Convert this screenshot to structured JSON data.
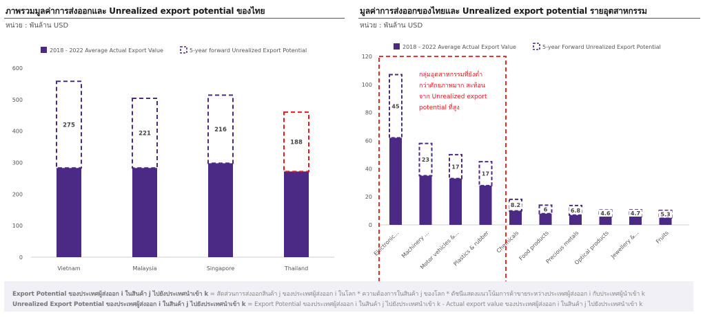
{
  "left_panel": {
    "title": "ภาพรวมมูลค่าการส่งออกและ Unrealized export potential ของไทย",
    "unit": "หน่วย : พันล้าน USD"
  },
  "right_panel": {
    "title": "มูลค่าการส่งออกของไทยและ Unrealized export potential รายอุตสาหกรรม",
    "unit": "หน่วย : พันล้าน USD",
    "annotation": [
      "กลุ่มอุตสาหกรรมที่ยังต่ำ",
      "กว่าศักยภาพมาก สะท้อน",
      "จาก Unrealized export",
      "potential ที่สูง"
    ]
  },
  "footer": {
    "line1_bold": "Export Potential ของประเทศผู้ส่งออก i ในสินค้า j ไปยังประเทศนำเข้า k",
    "line1_rest": " = สัดส่วนการส่งออกสินค้า j ของประเทศผู้ส่งออก i ในโลก * ความต้องการในสินค้า j ของโลก * ดัชนีแสดงแนวโน้มการค้าขายระหว่างประเทศผู้ส่งออก i กับประเทศผู้นำเข้า k",
    "line2_bold": "Unrealized Export Potential ของประเทศผู้ส่งออก i ในสินค้า j ไปยังประเทศนำเข้า k",
    "line2_rest": " = Export Potential ของประเทศผู้ส่งออก i ในสินค้า j ไปยังประเทศนำเข้า k  - Actual export value ของประเทศผู้ส่งออก i ในสินค้า j ไปยังประเทศนำเข้า k"
  },
  "colors": {
    "actual": "#4b2a85",
    "potential_border": "#4b2a85",
    "highlight": "#e01b1b"
  },
  "chart_data": [
    {
      "type": "bar",
      "stacked": true,
      "categories": [
        "Vietnam",
        "Malaysia",
        "Singapore",
        "Thailand"
      ],
      "series": [
        {
          "name": "2018 - 2022 Average Actual Export Value",
          "values": [
            283,
            283,
            298,
            272
          ],
          "style": "solid"
        },
        {
          "name": "5-year forward Unrealized Export Potential",
          "values": [
            275,
            221,
            216,
            188
          ],
          "style": "dashed",
          "labels": [
            "275",
            "221",
            "216",
            "188"
          ]
        }
      ],
      "ylim": [
        0,
        600
      ],
      "yticks": [
        0,
        100,
        200,
        300,
        400,
        500,
        600
      ],
      "highlight_category": "Thailand",
      "legend": "top",
      "grid": false
    },
    {
      "type": "bar",
      "stacked": true,
      "categories": [
        "Electronic...",
        "Machinery ...",
        "Motor vehicles &...",
        "Plastics & rubber",
        "Chemicals",
        "Food products",
        "Precious metals",
        "Optical products",
        "Jewellery &...",
        "Fruits"
      ],
      "series": [
        {
          "name": "2018 - 2022 Average Actual Export Value",
          "values": [
            62,
            35,
            33,
            28,
            10,
            8,
            7,
            6,
            6,
            5
          ],
          "style": "solid"
        },
        {
          "name": "5-year Forward Unrealized Export Potential",
          "values": [
            45,
            23,
            17,
            17,
            8.2,
            6,
            6.8,
            4.6,
            4.7,
            5.3
          ],
          "style": "dashed",
          "labels": [
            "45",
            "23",
            "17",
            "17",
            "8.2",
            "6",
            "6.8",
            "4.6",
            "4.7",
            "5.3"
          ]
        }
      ],
      "ylim": [
        0,
        120
      ],
      "yticks": [
        0,
        20,
        40,
        60,
        80,
        100,
        120
      ],
      "highlight_categories": [
        "Electronic...",
        "Machinery ...",
        "Motor vehicles &...",
        "Plastics & rubber"
      ],
      "legend": "top",
      "grid": false
    }
  ]
}
